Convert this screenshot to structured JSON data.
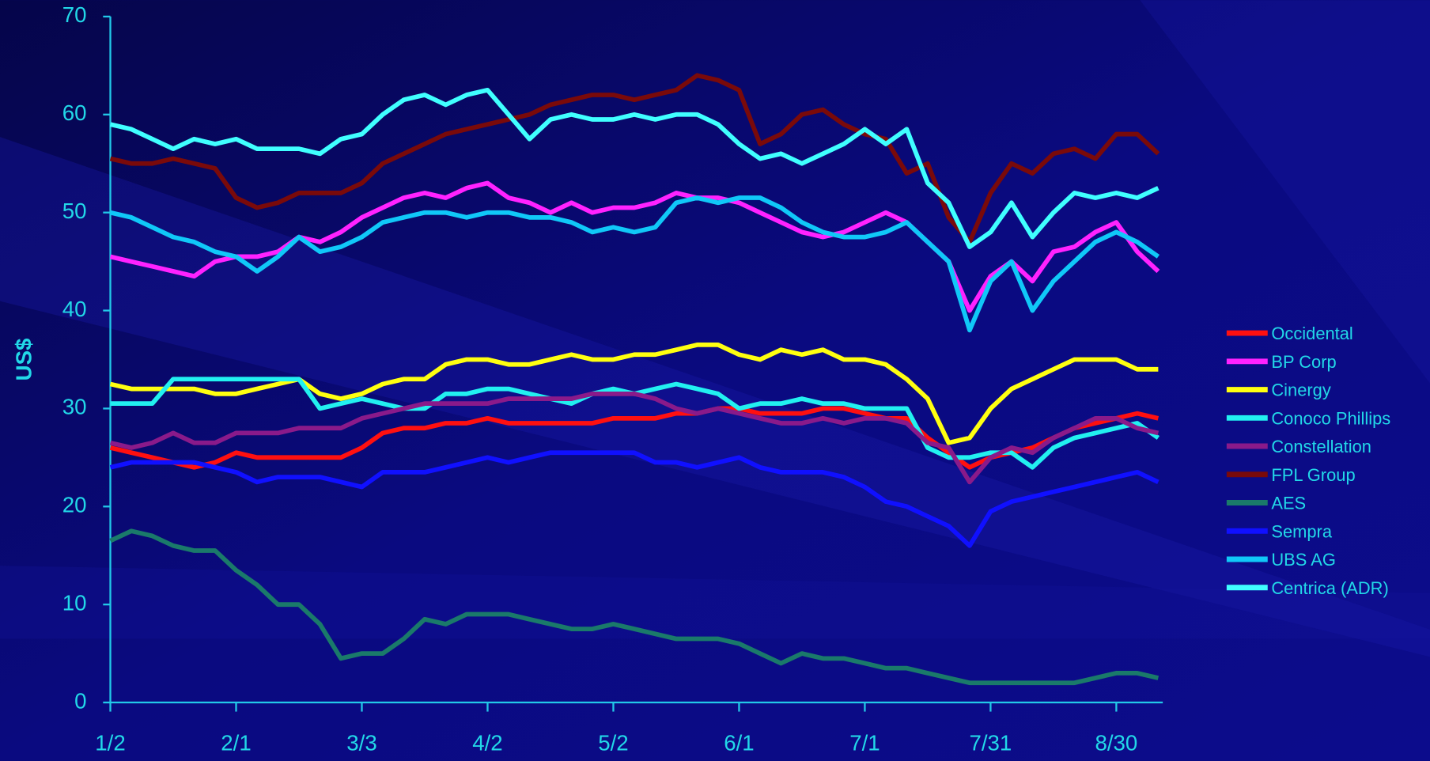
{
  "chart_data": {
    "type": "line",
    "ylabel": "US$",
    "categories": [
      "1/2",
      null,
      null,
      null,
      null,
      null,
      "2/1",
      null,
      null,
      null,
      null,
      null,
      "3/3",
      null,
      null,
      null,
      null,
      null,
      "4/2",
      null,
      null,
      null,
      null,
      null,
      "5/2",
      null,
      null,
      null,
      null,
      null,
      "6/1",
      null,
      null,
      null,
      null,
      null,
      "7/1",
      null,
      null,
      null,
      null,
      null,
      "7/31",
      null,
      null,
      null,
      null,
      null,
      "8/30",
      null,
      null
    ],
    "ylim": [
      0,
      70
    ],
    "yticks": [
      0,
      10,
      20,
      30,
      40,
      50,
      60,
      70
    ],
    "legend": "right",
    "series": [
      {
        "name": "Occidental",
        "color": "#ff1010",
        "values": [
          26,
          25.5,
          25,
          24.5,
          24,
          24.5,
          25.5,
          25,
          25,
          25,
          25,
          25,
          26,
          27.5,
          28,
          28,
          28.5,
          28.5,
          29,
          28.5,
          28.5,
          28.5,
          28.5,
          28.5,
          29,
          29,
          29,
          29.5,
          29.5,
          30,
          30,
          29.5,
          29.5,
          29.5,
          30,
          30,
          29.5,
          29,
          29,
          27,
          25.5,
          24,
          25,
          25.5,
          26,
          27,
          28,
          28.5,
          29,
          29.5,
          29
        ]
      },
      {
        "name": "BP Corp",
        "color": "#ff22ff",
        "values": [
          45.5,
          45,
          44.5,
          44,
          43.5,
          45,
          45.5,
          45.5,
          46,
          47.5,
          47,
          48,
          49.5,
          50.5,
          51.5,
          52,
          51.5,
          52.5,
          53,
          51.5,
          51,
          50,
          51,
          50,
          50.5,
          50.5,
          51,
          52,
          51.5,
          51.5,
          51,
          50,
          49,
          48,
          47.5,
          48,
          49,
          50,
          49,
          47,
          45,
          40,
          43.5,
          45,
          43,
          46,
          46.5,
          48,
          49,
          46,
          44
        ]
      },
      {
        "name": "Cinergy",
        "color": "#ffff10",
        "values": [
          32.5,
          32,
          32,
          32,
          32,
          31.5,
          31.5,
          32,
          32.5,
          33,
          31.5,
          31,
          31.5,
          32.5,
          33,
          33,
          34.5,
          35,
          35,
          34.5,
          34.5,
          35,
          35.5,
          35,
          35,
          35.5,
          35.5,
          36,
          36.5,
          36.5,
          35.5,
          35,
          36,
          35.5,
          36,
          35,
          35,
          34.5,
          33,
          31,
          26.5,
          27,
          30,
          32,
          33,
          34,
          35,
          35,
          35,
          34,
          34
        ]
      },
      {
        "name": "Conoco Phillips",
        "color": "#22f0f0",
        "values": [
          30.5,
          30.5,
          30.5,
          33,
          33,
          33,
          33,
          33,
          33,
          33,
          30,
          30.5,
          31,
          30.5,
          30,
          30,
          31.5,
          31.5,
          32,
          32,
          31.5,
          31,
          30.5,
          31.5,
          32,
          31.5,
          32,
          32.5,
          32,
          31.5,
          30,
          30.5,
          30.5,
          31,
          30.5,
          30.5,
          30,
          30,
          30,
          26,
          25,
          25,
          25.5,
          25.5,
          24,
          26,
          27,
          27.5,
          28,
          28.5,
          27
        ]
      },
      {
        "name": "Constellation",
        "color": "#8a1a8a",
        "values": [
          26.5,
          26,
          26.5,
          27.5,
          26.5,
          26.5,
          27.5,
          27.5,
          27.5,
          28,
          28,
          28,
          29,
          29.5,
          30,
          30.5,
          30.5,
          30.5,
          30.5,
          31,
          31,
          31,
          31,
          31.5,
          31.5,
          31.5,
          31,
          30,
          29.5,
          30,
          29.5,
          29,
          28.5,
          28.5,
          29,
          28.5,
          29,
          29,
          28.5,
          26.5,
          26,
          22.5,
          25,
          26,
          25.5,
          27,
          28,
          29,
          29,
          28,
          27.5
        ]
      },
      {
        "name": "FPL Group",
        "color": "#7a0a0a",
        "values": [
          55.5,
          55,
          55,
          55.5,
          55,
          54.5,
          51.5,
          50.5,
          51,
          52,
          52,
          52,
          53,
          55,
          56,
          57,
          58,
          58.5,
          59,
          59.5,
          60,
          61,
          61.5,
          62,
          62,
          61.5,
          62,
          62.5,
          64,
          63.5,
          62.5,
          57,
          58,
          60,
          60.5,
          59,
          58,
          57.5,
          54,
          55,
          49.5,
          47,
          52,
          55,
          54,
          56,
          56.5,
          55.5,
          58,
          58,
          56
        ]
      },
      {
        "name": "AES",
        "color": "#1a7a6a",
        "values": [
          16.5,
          17.5,
          17,
          16,
          15.5,
          15.5,
          13.5,
          12,
          10,
          10,
          8,
          4.5,
          5,
          5,
          6.5,
          8.5,
          8,
          9,
          9,
          9,
          8.5,
          8,
          7.5,
          7.5,
          8,
          7.5,
          7,
          6.5,
          6.5,
          6.5,
          6,
          5,
          4,
          5,
          4.5,
          4.5,
          4,
          3.5,
          3.5,
          3,
          2.5,
          2,
          2,
          2,
          2,
          2,
          2,
          2.5,
          3,
          3,
          2.5
        ]
      },
      {
        "name": "Sempra",
        "color": "#1010ff",
        "values": [
          24,
          24.5,
          24.5,
          24.5,
          24.5,
          24,
          23.5,
          22.5,
          23,
          23,
          23,
          22.5,
          22,
          23.5,
          23.5,
          23.5,
          24,
          24.5,
          25,
          24.5,
          25,
          25.5,
          25.5,
          25.5,
          25.5,
          25.5,
          24.5,
          24.5,
          24,
          24.5,
          25,
          24,
          23.5,
          23.5,
          23.5,
          23,
          22,
          20.5,
          20,
          19,
          18,
          16,
          19.5,
          20.5,
          21,
          21.5,
          22,
          22.5,
          23,
          23.5,
          22.5
        ]
      },
      {
        "name": "UBS AG",
        "color": "#10c8f8",
        "values": [
          50,
          49.5,
          48.5,
          47.5,
          47,
          46,
          45.5,
          44,
          45.5,
          47.5,
          46,
          46.5,
          47.5,
          49,
          49.5,
          50,
          50,
          49.5,
          50,
          50,
          49.5,
          49.5,
          49,
          48,
          48.5,
          48,
          48.5,
          51,
          51.5,
          51,
          51.5,
          51.5,
          50.5,
          49,
          48,
          47.5,
          47.5,
          48,
          49,
          47,
          45,
          38,
          43,
          45,
          40,
          43,
          45,
          47,
          48,
          47,
          45.5
        ]
      },
      {
        "name": "Centrica (ADR)",
        "color": "#40ffff",
        "values": [
          59,
          58.5,
          57.5,
          56.5,
          57.5,
          57,
          57.5,
          56.5,
          56.5,
          56.5,
          56,
          57.5,
          58,
          60,
          61.5,
          62,
          61,
          62,
          62.5,
          60,
          57.5,
          59.5,
          60,
          59.5,
          59.5,
          60,
          59.5,
          60,
          60,
          59,
          57,
          55.5,
          56,
          55,
          56,
          57,
          58.5,
          57,
          58.5,
          53,
          51,
          46.5,
          48,
          51,
          47.5,
          50,
          52,
          51.5,
          52,
          51.5,
          52.5
        ]
      }
    ]
  }
}
